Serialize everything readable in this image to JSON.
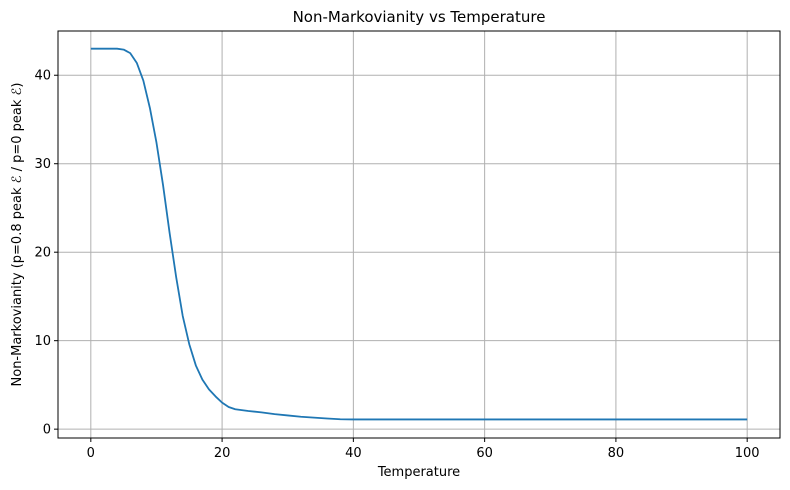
{
  "chart_data": {
    "type": "line",
    "title": "Non-Markovianity vs Temperature",
    "xlabel": "Temperature",
    "ylabel": "Non-Markovianity (p=0.8 peak ℰ / p=0 peak ℰ)",
    "xlim": [
      -5,
      105
    ],
    "ylim": [
      -1,
      45
    ],
    "xticks": [
      0,
      20,
      40,
      60,
      80,
      100
    ],
    "yticks": [
      0,
      10,
      20,
      30,
      40
    ],
    "grid": true,
    "line_color": "#1f77b4",
    "series": [
      {
        "x": [
          0,
          1,
          2,
          3,
          4,
          5,
          6,
          7,
          8,
          9,
          10,
          11,
          12,
          13,
          14,
          15,
          16,
          17,
          18,
          19,
          20,
          21,
          22,
          23,
          24,
          26,
          28,
          30,
          32,
          34,
          36,
          38,
          40,
          45,
          50,
          60,
          70,
          80,
          90,
          100
        ],
        "y": [
          43,
          43,
          43,
          43,
          43,
          42.9,
          42.5,
          41.4,
          39.4,
          36.3,
          32.4,
          27.6,
          22.2,
          17.2,
          12.8,
          9.6,
          7.2,
          5.6,
          4.5,
          3.7,
          3.0,
          2.5,
          2.25,
          2.15,
          2.05,
          1.9,
          1.7,
          1.55,
          1.4,
          1.3,
          1.2,
          1.12,
          1.1,
          1.1,
          1.1,
          1.1,
          1.1,
          1.1,
          1.1,
          1.1
        ]
      }
    ]
  }
}
